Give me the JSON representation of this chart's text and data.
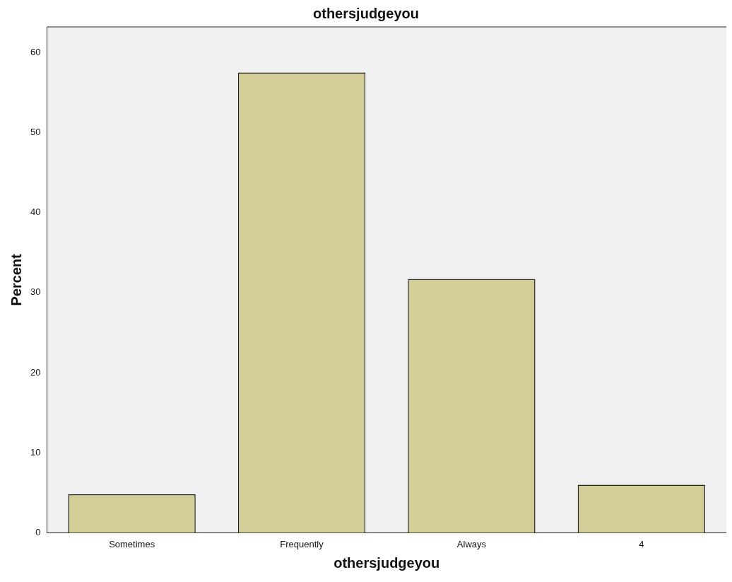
{
  "chart_data": {
    "type": "bar",
    "title": "othersjudgeyou",
    "xlabel": "othersjudgeyou",
    "ylabel": "Percent",
    "categories": [
      "Sometimes",
      "Frequently",
      "Always",
      "4"
    ],
    "values": [
      4.8,
      57.5,
      31.7,
      6.0
    ],
    "color": "#d3ce97",
    "ylim": [
      0,
      63.2
    ],
    "yticks": [
      0,
      10,
      20,
      30,
      40,
      50,
      60
    ],
    "grid": false,
    "legend": false
  }
}
